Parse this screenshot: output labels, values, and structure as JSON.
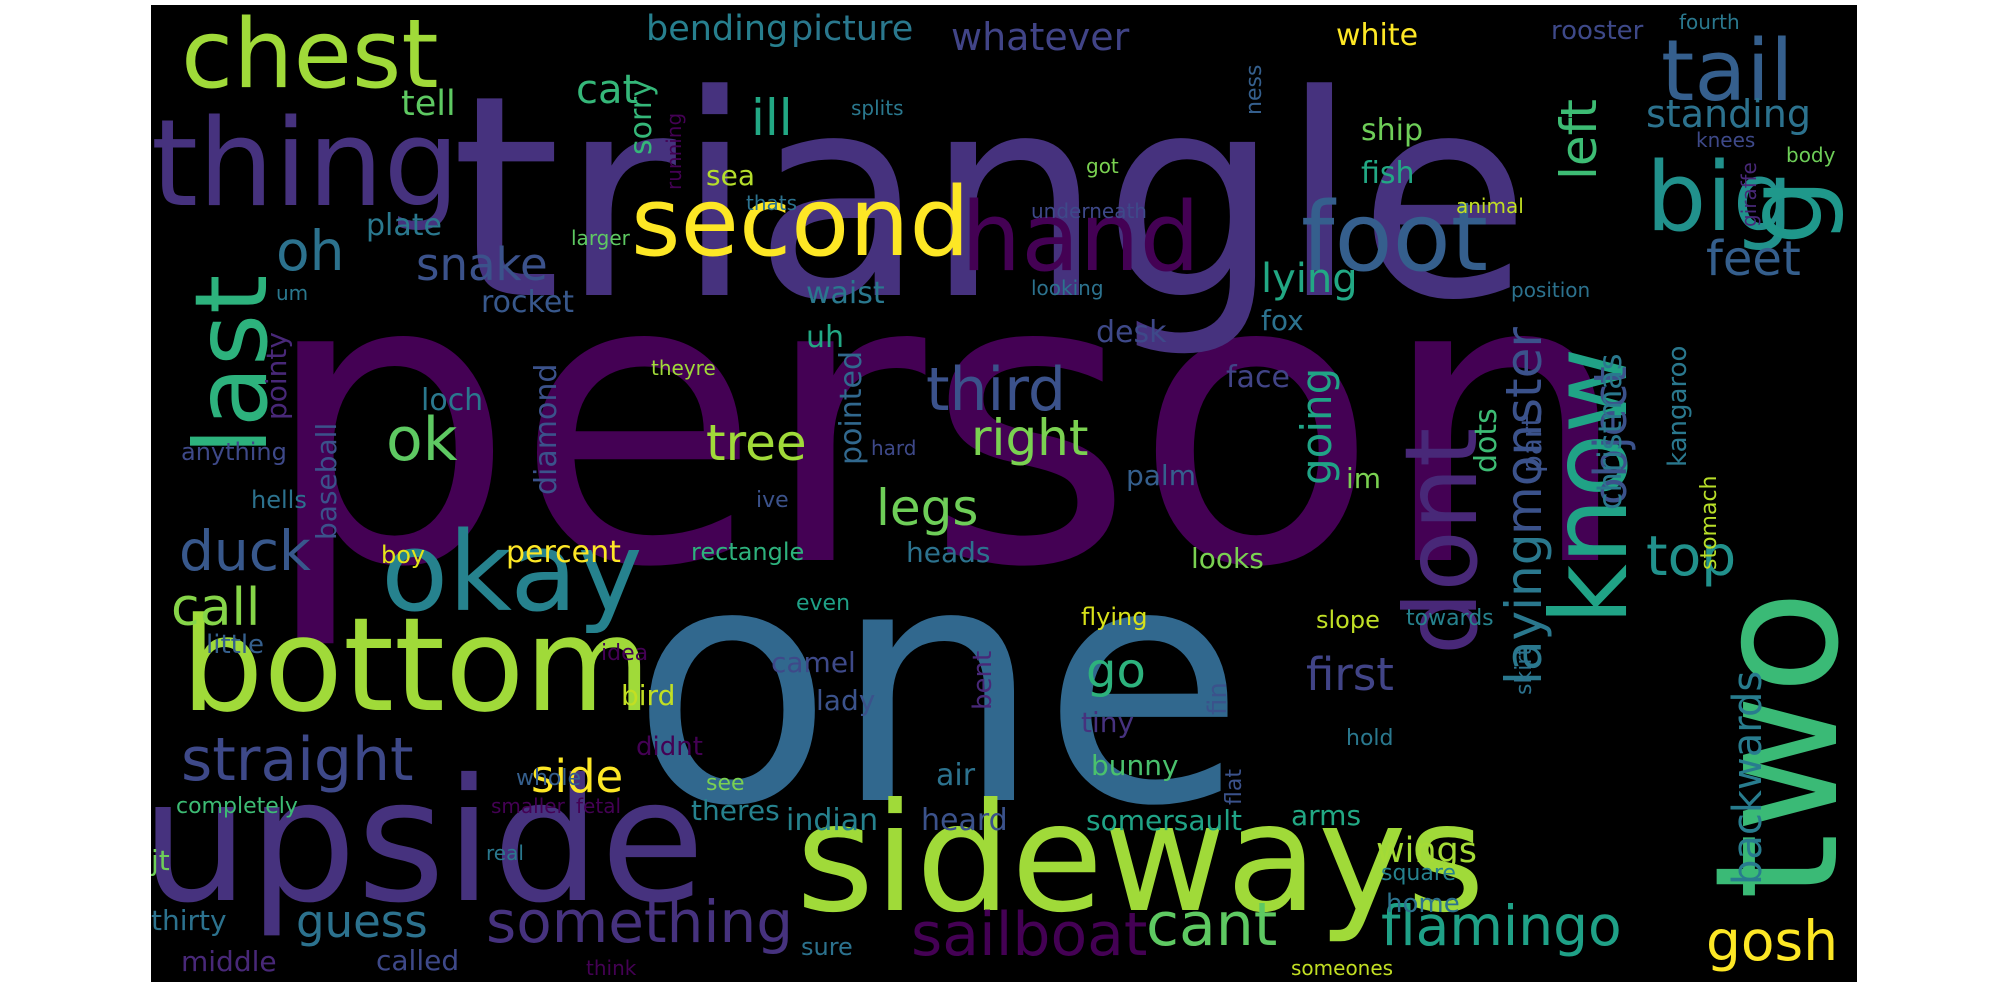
{
  "colors": {
    "background": "#000000",
    "page": "#ffffff",
    "palette": [
      "#440154",
      "#46327e",
      "#365c8d",
      "#277f8e",
      "#1fa187",
      "#4ac16d",
      "#a0da39",
      "#fde725"
    ]
  },
  "words": [
    {
      "t": "person",
      "c": "#440154"
    },
    {
      "t": "triangle",
      "c": "#46327e"
    },
    {
      "t": "one",
      "c": "#31688e"
    },
    {
      "t": "sideways",
      "c": "#a0da39"
    },
    {
      "t": "upside",
      "c": "#46327e"
    },
    {
      "t": "two",
      "c": "#3aba76"
    },
    {
      "t": "bottom",
      "c": "#a0da39"
    },
    {
      "t": "thing",
      "c": "#46327e"
    },
    {
      "t": "chest",
      "c": "#a0da39"
    },
    {
      "t": "okay",
      "c": "#26828e"
    },
    {
      "t": "second",
      "c": "#fde725"
    },
    {
      "t": "hand",
      "c": "#440154"
    },
    {
      "t": "foot",
      "c": "#355f8d"
    },
    {
      "t": "big",
      "c": "#21918c"
    },
    {
      "t": "g",
      "c": "#1f988b"
    },
    {
      "t": "tail",
      "c": "#355f8d"
    },
    {
      "t": "know",
      "c": "#20a386"
    },
    {
      "t": "dont",
      "c": "#482878"
    },
    {
      "t": "last",
      "c": "#2db27d"
    },
    {
      "t": "straight",
      "c": "#3e4989"
    },
    {
      "t": "sailboat",
      "c": "#440154"
    },
    {
      "t": "something",
      "c": "#46327e"
    },
    {
      "t": "cant",
      "c": "#5ec962"
    },
    {
      "t": "flamingo",
      "c": "#1fa187"
    },
    {
      "t": "laying",
      "c": "#2a788e"
    },
    {
      "t": "monster",
      "c": "#3b528b"
    },
    {
      "t": "gosh",
      "c": "#fde725"
    },
    {
      "t": "left",
      "c": "#3dbc74"
    },
    {
      "t": "top",
      "c": "#21918c"
    },
    {
      "t": "oh",
      "c": "#2c728e"
    },
    {
      "t": "ok",
      "c": "#5ec962"
    },
    {
      "t": "third",
      "c": "#3b528b"
    },
    {
      "t": "right",
      "c": "#7ad151"
    },
    {
      "t": "tree",
      "c": "#a0da39"
    },
    {
      "t": "legs",
      "c": "#6ece58"
    },
    {
      "t": "duck",
      "c": "#38588c"
    },
    {
      "t": "call",
      "c": "#86d549"
    },
    {
      "t": "guess",
      "c": "#2c728e"
    },
    {
      "t": "snake",
      "c": "#3b528b"
    },
    {
      "t": "cat",
      "c": "#35b779"
    },
    {
      "t": "bending",
      "c": "#277f8e"
    },
    {
      "t": "picture",
      "c": "#2a788e"
    },
    {
      "t": "whatever",
      "c": "#414487"
    },
    {
      "t": "ill",
      "c": "#22a884"
    },
    {
      "t": "standing",
      "c": "#2c728e"
    },
    {
      "t": "feet",
      "c": "#355f8d"
    },
    {
      "t": "lying",
      "c": "#22a884"
    },
    {
      "t": "object",
      "c": "#3b528b"
    },
    {
      "t": "going",
      "c": "#20a386"
    },
    {
      "t": "go",
      "c": "#2db27d"
    },
    {
      "t": "first",
      "c": "#414487"
    },
    {
      "t": "side",
      "c": "#fde725"
    },
    {
      "t": "backwards",
      "c": "#287c8e"
    },
    {
      "t": "christmas",
      "c": "#2a788e"
    },
    {
      "t": "wings",
      "c": "#a5db36"
    },
    {
      "t": "tell",
      "c": "#5ec962"
    },
    {
      "t": "white",
      "c": "#fde725"
    },
    {
      "t": "ship",
      "c": "#6ece58"
    },
    {
      "t": "fish",
      "c": "#22a884"
    },
    {
      "t": "sorry",
      "c": "#35b779"
    },
    {
      "t": "sea",
      "c": "#b5de2b"
    },
    {
      "t": "plate",
      "c": "#2a788e"
    },
    {
      "t": "rocket",
      "c": "#38588c"
    },
    {
      "t": "waist",
      "c": "#2a788e"
    },
    {
      "t": "uh",
      "c": "#22a884"
    },
    {
      "t": "desk",
      "c": "#3e4989"
    },
    {
      "t": "fox",
      "c": "#2c728e"
    },
    {
      "t": "face",
      "c": "#414487"
    },
    {
      "t": "loch",
      "c": "#2a788e"
    },
    {
      "t": "diamond",
      "c": "#3b528b"
    },
    {
      "t": "pointed",
      "c": "#31688e"
    },
    {
      "t": "palm",
      "c": "#355f8d"
    },
    {
      "t": "im",
      "c": "#7ad151"
    },
    {
      "t": "dots",
      "c": "#3dbc74"
    },
    {
      "t": "part",
      "c": "#3b528b"
    },
    {
      "t": "kangaroo",
      "c": "#2a788e"
    },
    {
      "t": "percent",
      "c": "#fde725"
    },
    {
      "t": "heads",
      "c": "#2c728e"
    },
    {
      "t": "looks",
      "c": "#7ad151"
    },
    {
      "t": "baseball",
      "c": "#3b528b"
    },
    {
      "t": "pointy",
      "c": "#482878"
    },
    {
      "t": "anything",
      "c": "#3e4989"
    },
    {
      "t": "hells",
      "c": "#2c728e"
    },
    {
      "t": "rectangle",
      "c": "#2db27d"
    },
    {
      "t": "boy",
      "c": "#e5e419"
    },
    {
      "t": "even",
      "c": "#1fa187"
    },
    {
      "t": "flying",
      "c": "#d8e219"
    },
    {
      "t": "slope",
      "c": "#c0df25"
    },
    {
      "t": "towards",
      "c": "#26828e"
    },
    {
      "t": "stomach",
      "c": "#b8de29"
    },
    {
      "t": "little",
      "c": "#355f8d"
    },
    {
      "t": "idea",
      "c": "#440154"
    },
    {
      "t": "bird",
      "c": "#c2df23"
    },
    {
      "t": "camel",
      "c": "#3e4989"
    },
    {
      "t": "lady",
      "c": "#3b528b"
    },
    {
      "t": "bent",
      "c": "#482878"
    },
    {
      "t": "fin",
      "c": "#3b528b"
    },
    {
      "t": "skirt",
      "c": "#2c728e"
    },
    {
      "t": "tiny",
      "c": "#46327e"
    },
    {
      "t": "bunny",
      "c": "#4ac16d"
    },
    {
      "t": "didnt",
      "c": "#440154"
    },
    {
      "t": "air",
      "c": "#2c728e"
    },
    {
      "t": "hold",
      "c": "#2a788e"
    },
    {
      "t": "see",
      "c": "#7ad151"
    },
    {
      "t": "whole",
      "c": "#355f8d"
    },
    {
      "t": "flat",
      "c": "#3b528b"
    },
    {
      "t": "theres",
      "c": "#26828e"
    },
    {
      "t": "indian",
      "c": "#26828e"
    },
    {
      "t": "heard",
      "c": "#3b528b"
    },
    {
      "t": "somersault",
      "c": "#20a386"
    },
    {
      "t": "arms",
      "c": "#22a884"
    },
    {
      "t": "completely",
      "c": "#3dbc74"
    },
    {
      "t": "smaller",
      "c": "#440154"
    },
    {
      "t": "fetal",
      "c": "#440154"
    },
    {
      "t": "jt",
      "c": "#6ece58"
    },
    {
      "t": "real",
      "c": "#2a788e"
    },
    {
      "t": "square",
      "c": "#26828e"
    },
    {
      "t": "home",
      "c": "#2c728e"
    },
    {
      "t": "thirty",
      "c": "#2c728e"
    },
    {
      "t": "middle",
      "c": "#482878"
    },
    {
      "t": "called",
      "c": "#3e4989"
    },
    {
      "t": "sure",
      "c": "#2c728e"
    },
    {
      "t": "think",
      "c": "#440154"
    },
    {
      "t": "someones",
      "c": "#c2df23"
    },
    {
      "t": "rooster",
      "c": "#3e4989"
    },
    {
      "t": "fourth",
      "c": "#2a788e"
    },
    {
      "t": "splits",
      "c": "#2a788e"
    },
    {
      "t": "ness",
      "c": "#355f8d"
    },
    {
      "t": "knees",
      "c": "#3e4989"
    },
    {
      "t": "giraffe",
      "c": "#482878"
    },
    {
      "t": "body",
      "c": "#6ece58"
    },
    {
      "t": "got",
      "c": "#7ad151"
    },
    {
      "t": "running",
      "c": "#440154"
    },
    {
      "t": "thats",
      "c": "#2c728e"
    },
    {
      "t": "underneath",
      "c": "#3e4989"
    },
    {
      "t": "animal",
      "c": "#c2df23"
    },
    {
      "t": "larger",
      "c": "#5ec962"
    },
    {
      "t": "looking",
      "c": "#2c728e"
    },
    {
      "t": "position",
      "c": "#2c728e"
    },
    {
      "t": "um",
      "c": "#2a788e"
    },
    {
      "t": "theyre",
      "c": "#a0da39"
    },
    {
      "t": "hard",
      "c": "#3e4989"
    },
    {
      "t": "ive",
      "c": "#3b528b"
    }
  ]
}
